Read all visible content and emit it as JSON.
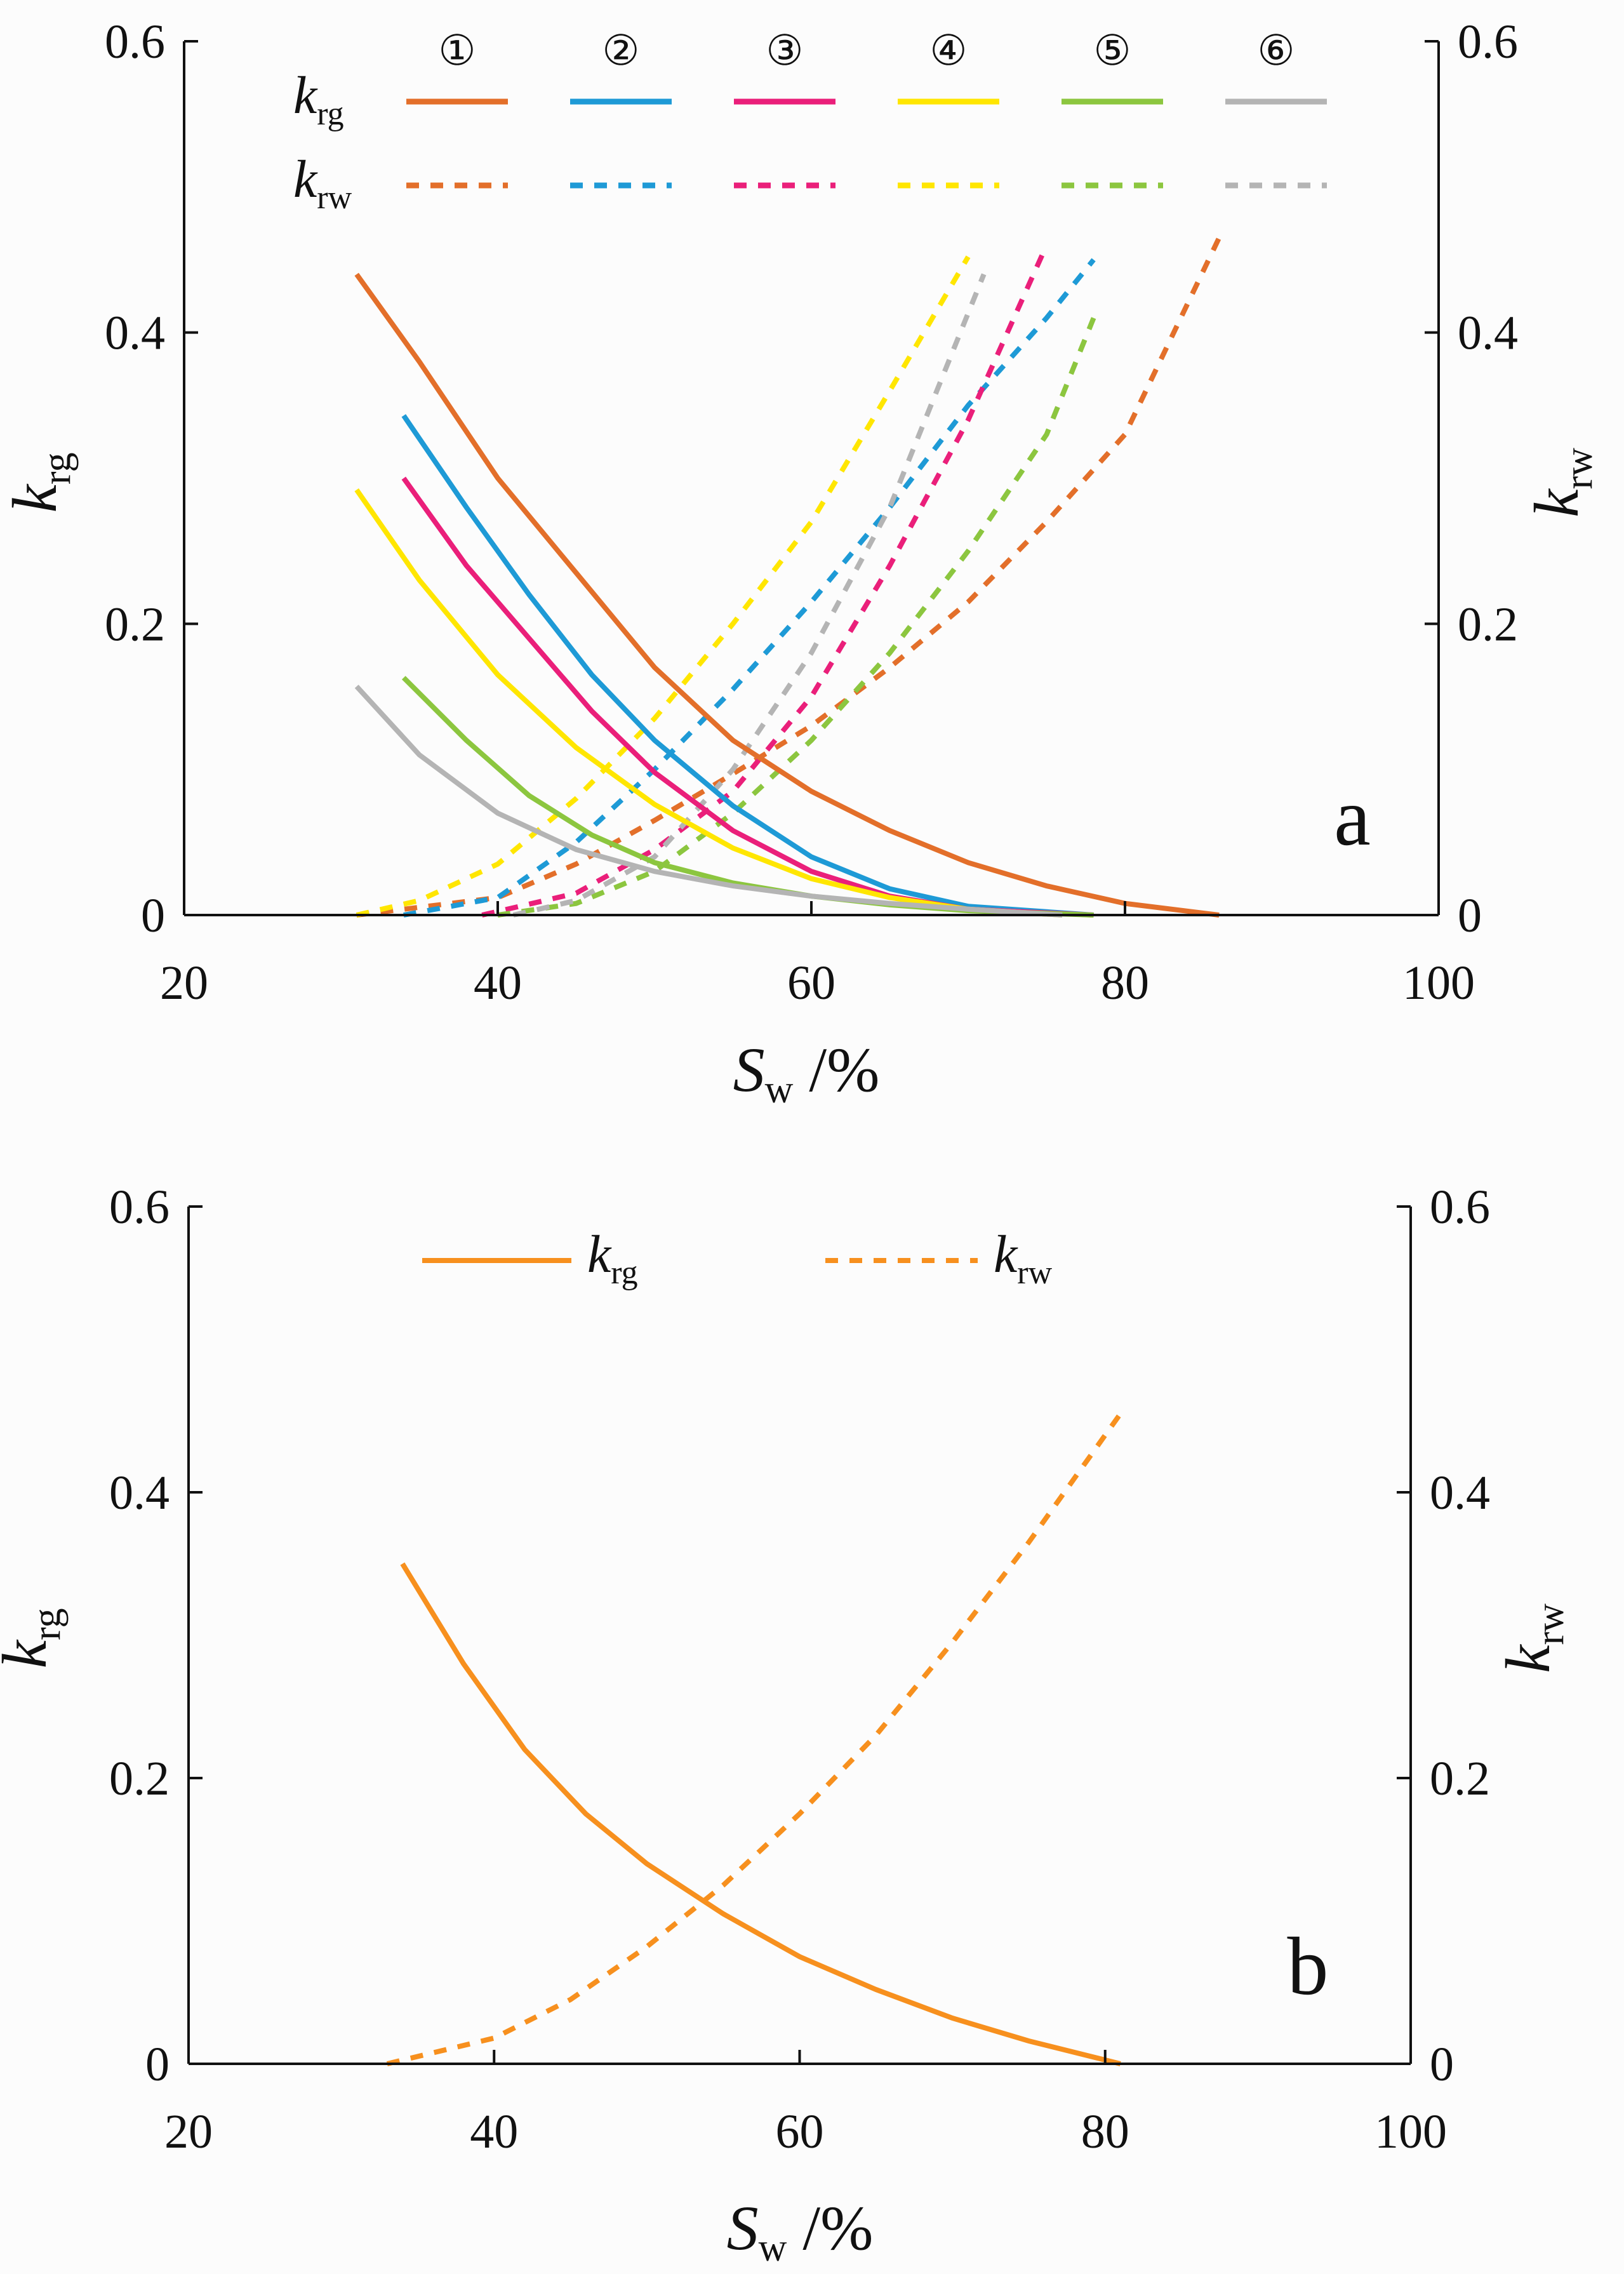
{
  "chart_data": [
    {
      "panel": "a",
      "type": "line",
      "xlabel": {
        "main": "S",
        "sub": "w",
        "suffix": " /%"
      },
      "ylabel_left": {
        "main": "k",
        "sub": "rg"
      },
      "ylabel_right": {
        "main": "k",
        "sub": "rw"
      },
      "xlim": [
        20,
        100
      ],
      "ylim": [
        0,
        0.6
      ],
      "xticks": [
        "20",
        "40",
        "60",
        "80",
        "100"
      ],
      "yticks": [
        "0",
        "0.2",
        "0.4",
        "0.6"
      ],
      "legend_rows": [
        {
          "main": "k",
          "sub": "rg",
          "style": "solid"
        },
        {
          "main": "k",
          "sub": "rw",
          "style": "dashed"
        }
      ],
      "series": [
        {
          "name": "①",
          "color": "#e36f2a",
          "krg": [
            [
              31,
              0.44
            ],
            [
              35,
              0.38
            ],
            [
              40,
              0.3
            ],
            [
              45,
              0.235
            ],
            [
              50,
              0.17
            ],
            [
              55,
              0.12
            ],
            [
              60,
              0.085
            ],
            [
              65,
              0.058
            ],
            [
              70,
              0.036
            ],
            [
              75,
              0.02
            ],
            [
              80,
              0.008
            ],
            [
              86,
              0.0
            ]
          ],
          "krw": [
            [
              31,
              0.0
            ],
            [
              40,
              0.012
            ],
            [
              45,
              0.035
            ],
            [
              50,
              0.065
            ],
            [
              55,
              0.097
            ],
            [
              60,
              0.13
            ],
            [
              65,
              0.17
            ],
            [
              70,
              0.215
            ],
            [
              75,
              0.27
            ],
            [
              80,
              0.33
            ],
            [
              86,
              0.465
            ]
          ]
        },
        {
          "name": "②",
          "color": "#1e9ad6",
          "krg": [
            [
              34,
              0.343
            ],
            [
              38,
              0.28
            ],
            [
              42,
              0.22
            ],
            [
              46,
              0.165
            ],
            [
              50,
              0.12
            ],
            [
              55,
              0.075
            ],
            [
              60,
              0.04
            ],
            [
              65,
              0.018
            ],
            [
              70,
              0.006
            ],
            [
              78,
              0.0
            ]
          ],
          "krw": [
            [
              34,
              0.0
            ],
            [
              40,
              0.012
            ],
            [
              45,
              0.05
            ],
            [
              50,
              0.1
            ],
            [
              55,
              0.155
            ],
            [
              60,
              0.215
            ],
            [
              65,
              0.28
            ],
            [
              70,
              0.35
            ],
            [
              75,
              0.41
            ],
            [
              78,
              0.45
            ]
          ]
        },
        {
          "name": "③",
          "color": "#ea1f7a",
          "krg": [
            [
              34,
              0.3
            ],
            [
              38,
              0.24
            ],
            [
              42,
              0.19
            ],
            [
              46,
              0.14
            ],
            [
              50,
              0.098
            ],
            [
              55,
              0.058
            ],
            [
              60,
              0.03
            ],
            [
              65,
              0.013
            ],
            [
              70,
              0.004
            ],
            [
              78,
              0.0
            ]
          ],
          "krw": [
            [
              39,
              0.0
            ],
            [
              45,
              0.015
            ],
            [
              50,
              0.045
            ],
            [
              55,
              0.085
            ],
            [
              60,
              0.15
            ],
            [
              65,
              0.24
            ],
            [
              70,
              0.34
            ],
            [
              75,
              0.46
            ]
          ]
        },
        {
          "name": "④",
          "color": "#ffe600",
          "krg": [
            [
              31,
              0.292
            ],
            [
              35,
              0.23
            ],
            [
              40,
              0.165
            ],
            [
              45,
              0.115
            ],
            [
              50,
              0.076
            ],
            [
              55,
              0.046
            ],
            [
              60,
              0.025
            ],
            [
              65,
              0.012
            ],
            [
              70,
              0.004
            ],
            [
              76,
              0.0
            ]
          ],
          "krw": [
            [
              31,
              0.0
            ],
            [
              35,
              0.01
            ],
            [
              40,
              0.035
            ],
            [
              45,
              0.08
            ],
            [
              50,
              0.135
            ],
            [
              55,
              0.2
            ],
            [
              60,
              0.27
            ],
            [
              65,
              0.36
            ],
            [
              70,
              0.452
            ]
          ]
        },
        {
          "name": "⑤",
          "color": "#8cc63f",
          "krg": [
            [
              34,
              0.163
            ],
            [
              38,
              0.12
            ],
            [
              42,
              0.082
            ],
            [
              46,
              0.055
            ],
            [
              50,
              0.036
            ],
            [
              55,
              0.022
            ],
            [
              60,
              0.013
            ],
            [
              65,
              0.007
            ],
            [
              70,
              0.003
            ],
            [
              78,
              0.0
            ]
          ],
          "krw": [
            [
              40,
              0.0
            ],
            [
              45,
              0.008
            ],
            [
              50,
              0.03
            ],
            [
              55,
              0.07
            ],
            [
              60,
              0.12
            ],
            [
              65,
              0.18
            ],
            [
              70,
              0.25
            ],
            [
              75,
              0.33
            ],
            [
              78,
              0.41
            ]
          ]
        },
        {
          "name": "⑥",
          "color": "#b4b4b4",
          "krg": [
            [
              31,
              0.157
            ],
            [
              35,
              0.11
            ],
            [
              40,
              0.07
            ],
            [
              45,
              0.045
            ],
            [
              50,
              0.03
            ],
            [
              55,
              0.02
            ],
            [
              60,
              0.013
            ],
            [
              65,
              0.008
            ],
            [
              70,
              0.004
            ],
            [
              76,
              0.0
            ]
          ],
          "krw": [
            [
              41,
              0.0
            ],
            [
              45,
              0.01
            ],
            [
              50,
              0.04
            ],
            [
              55,
              0.1
            ],
            [
              60,
              0.18
            ],
            [
              65,
              0.28
            ],
            [
              71,
              0.44
            ]
          ]
        }
      ]
    },
    {
      "panel": "b",
      "type": "line",
      "xlabel": {
        "main": "S",
        "sub": "w",
        "suffix": " /%"
      },
      "ylabel_left": {
        "main": "k",
        "sub": "rg"
      },
      "ylabel_right": {
        "main": "k",
        "sub": "rw"
      },
      "xlim": [
        20,
        100
      ],
      "ylim": [
        0,
        0.6
      ],
      "xticks": [
        "20",
        "40",
        "60",
        "80",
        "100"
      ],
      "yticks": [
        "0",
        "0.2",
        "0.4",
        "0.6"
      ],
      "legend": [
        {
          "main": "k",
          "sub": "rg",
          "style": "solid"
        },
        {
          "main": "k",
          "sub": "rw",
          "style": "dashed"
        }
      ],
      "series": [
        {
          "name": "krg",
          "color": "#f7901e",
          "style": "solid",
          "points": [
            [
              34,
              0.35
            ],
            [
              38,
              0.28
            ],
            [
              42,
              0.22
            ],
            [
              46,
              0.175
            ],
            [
              50,
              0.14
            ],
            [
              55,
              0.105
            ],
            [
              60,
              0.075
            ],
            [
              65,
              0.052
            ],
            [
              70,
              0.032
            ],
            [
              75,
              0.016
            ],
            [
              81,
              0.0
            ]
          ]
        },
        {
          "name": "krw",
          "color": "#f7901e",
          "style": "dashed",
          "points": [
            [
              33,
              0.0
            ],
            [
              40,
              0.018
            ],
            [
              45,
              0.045
            ],
            [
              50,
              0.082
            ],
            [
              55,
              0.125
            ],
            [
              60,
              0.175
            ],
            [
              65,
              0.23
            ],
            [
              70,
              0.295
            ],
            [
              75,
              0.365
            ],
            [
              81,
              0.455
            ]
          ]
        }
      ]
    }
  ]
}
